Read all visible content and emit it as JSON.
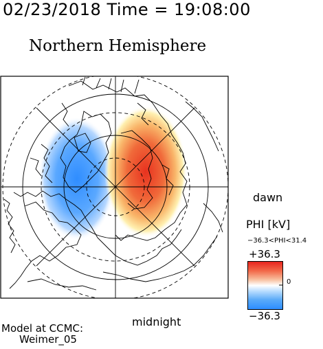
{
  "header": {
    "time_title": "02/23/2018 Time = 19:08:00",
    "hemisphere": "Northern Hemisphere"
  },
  "map": {
    "dawn_label": "dawn",
    "midnight_label": "midnight",
    "convection_cells": [
      {
        "name": "negative",
        "color": "#2b8cff"
      },
      {
        "name": "positive",
        "color": "#e83a2a"
      }
    ]
  },
  "colorbar": {
    "title": "PHI [kV]",
    "range_text": "−36.3<PHI<31.4",
    "max_label": "+36.3",
    "min_label": "−36.3",
    "zero_label": "0",
    "colors": [
      "#e8231e",
      "#ffffff",
      "#2b8cff"
    ]
  },
  "credit": {
    "line1": "Model at CCMC:",
    "line2": "Weimer_05"
  }
}
